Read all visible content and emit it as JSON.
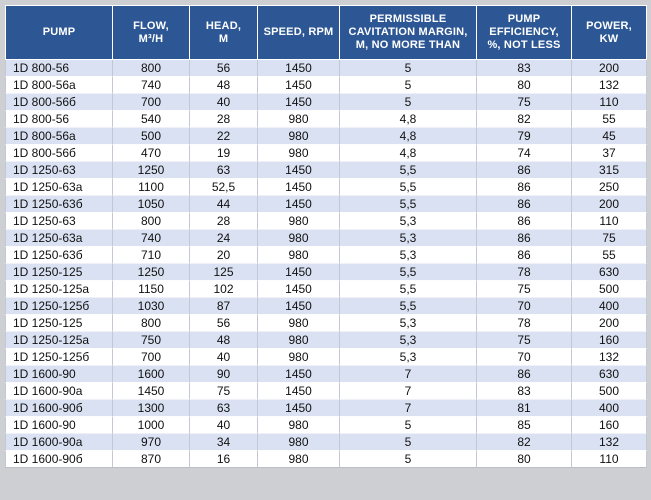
{
  "table": {
    "columns": [
      {
        "key": "pump",
        "label": "PUMP"
      },
      {
        "key": "flow",
        "label": "FLOW,\nM³/H"
      },
      {
        "key": "head",
        "label": "HEAD,\nM"
      },
      {
        "key": "speed",
        "label": "SPEED, RPM"
      },
      {
        "key": "cavitation",
        "label": "PERMISSIBLE\nCAVITATION MARGIN,\nM, NO MORE THAN"
      },
      {
        "key": "efficiency",
        "label": "PUMP\nEFFICIENCY,\n%, NOT LESS"
      },
      {
        "key": "power",
        "label": "POWER,\nKW"
      }
    ],
    "rows": [
      [
        "1D 800-56",
        "800",
        "56",
        "1450",
        "5",
        "83",
        "200"
      ],
      [
        "1D 800-56a",
        "740",
        "48",
        "1450",
        "5",
        "80",
        "132"
      ],
      [
        "1D 800-56б",
        "700",
        "40",
        "1450",
        "5",
        "75",
        "110"
      ],
      [
        "1D 800-56",
        "540",
        "28",
        "980",
        "4,8",
        "82",
        "55"
      ],
      [
        "1D 800-56a",
        "500",
        "22",
        "980",
        "4,8",
        "79",
        "45"
      ],
      [
        "1D 800-56б",
        "470",
        "19",
        "980",
        "4,8",
        "74",
        "37"
      ],
      [
        "1D 1250-63",
        "1250",
        "63",
        "1450",
        "5,5",
        "86",
        "315"
      ],
      [
        "1D 1250-63a",
        "1100",
        "52,5",
        "1450",
        "5,5",
        "86",
        "250"
      ],
      [
        "1D 1250-63б",
        "1050",
        "44",
        "1450",
        "5,5",
        "86",
        "200"
      ],
      [
        "1D 1250-63",
        "800",
        "28",
        "980",
        "5,3",
        "86",
        "110"
      ],
      [
        "1D 1250-63a",
        "740",
        "24",
        "980",
        "5,3",
        "86",
        "75"
      ],
      [
        "1D 1250-63б",
        "710",
        "20",
        "980",
        "5,3",
        "86",
        "55"
      ],
      [
        "1D 1250-125",
        "1250",
        "125",
        "1450",
        "5,5",
        "78",
        "630"
      ],
      [
        "1D 1250-125a",
        "1150",
        "102",
        "1450",
        "5,5",
        "75",
        "500"
      ],
      [
        "1D 1250-125б",
        "1030",
        "87",
        "1450",
        "5,5",
        "70",
        "400"
      ],
      [
        "1D 1250-125",
        "800",
        "56",
        "980",
        "5,3",
        "78",
        "200"
      ],
      [
        "1D 1250-125a",
        "750",
        "48",
        "980",
        "5,3",
        "75",
        "160"
      ],
      [
        "1D 1250-125б",
        "700",
        "40",
        "980",
        "5,3",
        "70",
        "132"
      ],
      [
        "1D 1600-90",
        "1600",
        "90",
        "1450",
        "7",
        "86",
        "630"
      ],
      [
        "1D 1600-90a",
        "1450",
        "75",
        "1450",
        "7",
        "83",
        "500"
      ],
      [
        "1D 1600-90б",
        "1300",
        "63",
        "1450",
        "7",
        "81",
        "400"
      ],
      [
        "1D 1600-90",
        "1000",
        "40",
        "980",
        "5",
        "85",
        "160"
      ],
      [
        "1D 1600-90a",
        "970",
        "34",
        "980",
        "5",
        "82",
        "132"
      ],
      [
        "1D 1600-90б",
        "870",
        "16",
        "980",
        "5",
        "80",
        "110"
      ]
    ]
  },
  "colors": {
    "header_bg": "#2d5794",
    "header_text": "#ffffff",
    "row_alt_bg": "#d9e1f2",
    "row_base_bg": "#ffffff",
    "grid_line": "#c3c8d2",
    "page_bg": "#cdcfd2"
  }
}
